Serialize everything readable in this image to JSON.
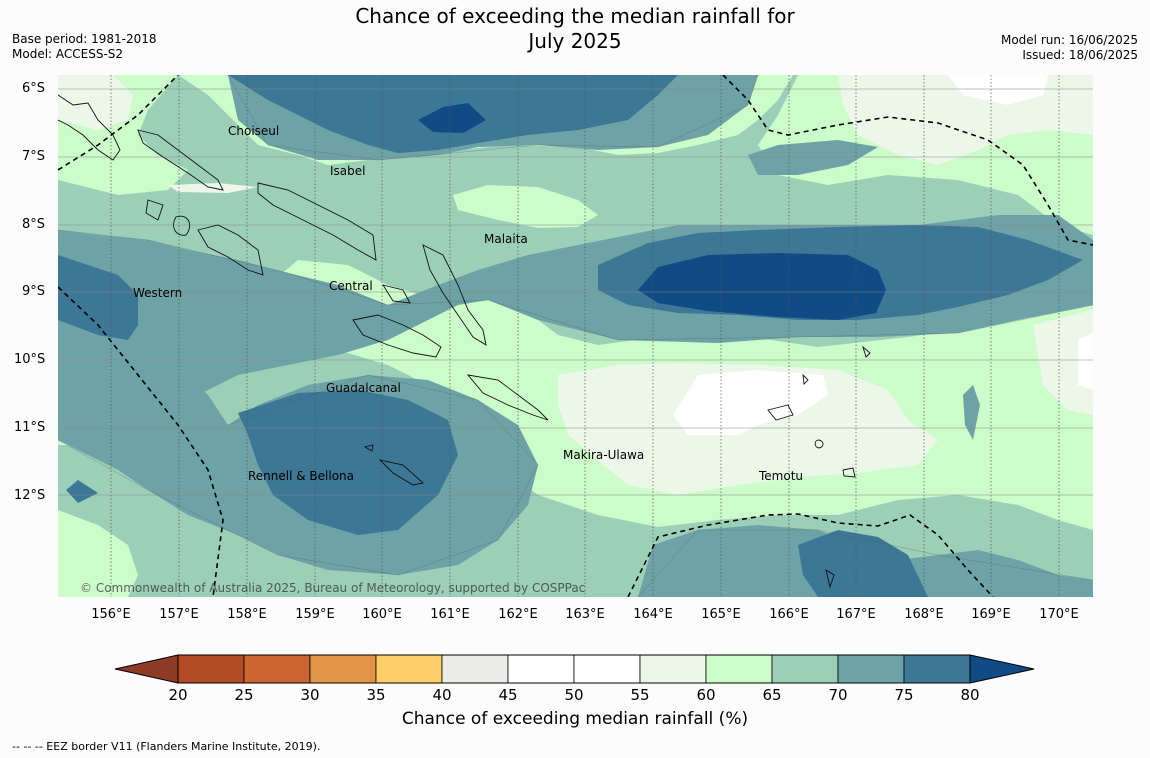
{
  "title": {
    "line1": "Chance of exceeding the median rainfall for",
    "line2": "July 2025"
  },
  "meta": {
    "base_period": "Base period: 1981-2018",
    "model": "Model: ACCESS-S2",
    "model_run": "Model run: 16/06/2025",
    "issued": "Issued: 18/06/2025"
  },
  "map": {
    "latitude_labels": [
      "6°S",
      "7°S",
      "8°S",
      "9°S",
      "10°S",
      "11°S",
      "12°S"
    ],
    "longitude_labels": [
      "156°E",
      "157°E",
      "158°E",
      "159°E",
      "160°E",
      "161°E",
      "162°E",
      "163°E",
      "164°E",
      "165°E",
      "166°E",
      "167°E",
      "168°E",
      "169°E",
      "170°E"
    ],
    "place_names": [
      "Choiseul",
      "Isabel",
      "Malaita",
      "Western",
      "Central",
      "Guadalcanal",
      "Makira-Ulawa",
      "Rennell & Bellona",
      "Temotu"
    ],
    "copyright": "© Commonwealth of Australia 2025, Bureau of Meteorology, supported by COSPPac",
    "ocean_color": "#cbfcc9"
  },
  "colorbar": {
    "title": "Chance of exceeding median rainfall (%)",
    "ticks": [
      "20",
      "25",
      "30",
      "35",
      "40",
      "45",
      "50",
      "55",
      "60",
      "65",
      "70",
      "75",
      "80"
    ],
    "colors": [
      "#b24a26",
      "#cd6532",
      "#e29447",
      "#fdcf68",
      "#ebebe7",
      "#ffffff",
      "#ffffff",
      "#ecf7ea",
      "#cbfcc9",
      "#9ccfb8",
      "#6da3a6",
      "#3c7796",
      "#114b85"
    ],
    "under_color": "#8e3a25",
    "over_color": "#114b85"
  },
  "footnote": "--  --  -- EEZ border V11 (Flanders Marine Institute, 2019)."
}
